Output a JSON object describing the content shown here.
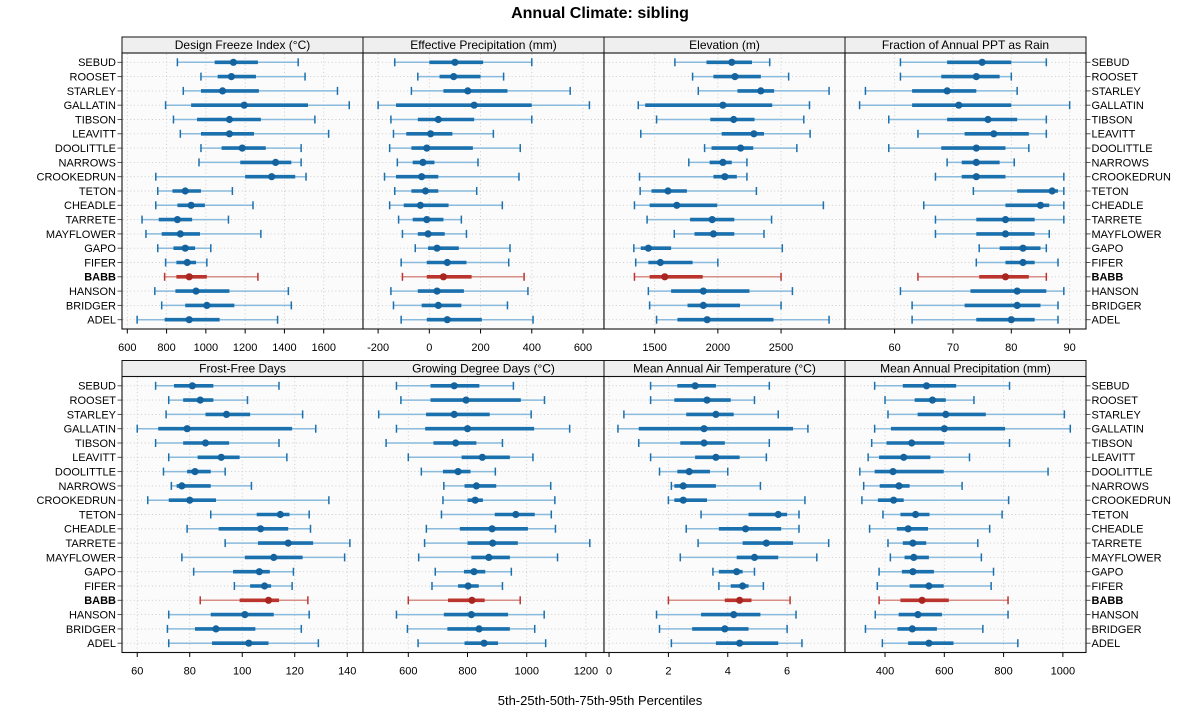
{
  "title": "Annual Climate: sibling",
  "caption": "5th-25th-50th-75th-95th Percentiles",
  "colors": {
    "blue": "#1b70ae",
    "blue_light": "#8abadc",
    "blue_dot": "#14639e",
    "red": "#bb352e",
    "red_light": "#d78e87",
    "red_dot": "#a8261f",
    "strip_bg": "#efefef",
    "panel_bg": "#fbfbfb",
    "grid": "#c9c9c9",
    "border": "#111111",
    "tick": "#000000"
  },
  "chart_data": {
    "type": "trellis-dotplot-percentiles",
    "percentiles": [
      "5th",
      "25th",
      "50th",
      "75th",
      "95th"
    ],
    "stations": [
      "SEBUD",
      "ROOSET",
      "STARLEY",
      "GALLATIN",
      "TIBSON",
      "LEAVITT",
      "DOOLITTLE",
      "NARROWS",
      "CROOKEDRUN",
      "TETON",
      "CHEADLE",
      "TARRETE",
      "MAYFLOWER",
      "GAPO",
      "FIFER",
      "BABB",
      "HANSON",
      "BRIDGER",
      "ADEL"
    ],
    "highlight_station": "BABB",
    "grid": {
      "rows": 2,
      "cols": 4
    },
    "panels": [
      {
        "title": "Design Freeze Index (°C)",
        "row": 0,
        "col": 0,
        "xlim": [
          573,
          1800
        ],
        "ticks": [
          600,
          800,
          1000,
          1200,
          1400,
          1600
        ],
        "values": [
          [
            855,
            1045,
            1140,
            1265,
            1470
          ],
          [
            975,
            1060,
            1130,
            1255,
            1505
          ],
          [
            885,
            975,
            1085,
            1270,
            1670
          ],
          [
            795,
            925,
            1195,
            1520,
            1730
          ],
          [
            835,
            955,
            1120,
            1280,
            1555
          ],
          [
            870,
            975,
            1120,
            1245,
            1625
          ],
          [
            975,
            1080,
            1185,
            1305,
            1485
          ],
          [
            965,
            1175,
            1355,
            1435,
            1485
          ],
          [
            745,
            1200,
            1335,
            1455,
            1510
          ],
          [
            755,
            830,
            895,
            975,
            1135
          ],
          [
            745,
            855,
            925,
            995,
            1240
          ],
          [
            675,
            760,
            855,
            930,
            1115
          ],
          [
            695,
            775,
            870,
            970,
            1280
          ],
          [
            755,
            835,
            895,
            945,
            1025
          ],
          [
            795,
            850,
            905,
            950,
            1005
          ],
          [
            790,
            850,
            915,
            1005,
            1265
          ],
          [
            740,
            845,
            950,
            1120,
            1420
          ],
          [
            775,
            895,
            1005,
            1145,
            1435
          ],
          [
            650,
            790,
            915,
            1070,
            1365
          ]
        ]
      },
      {
        "title": "Effective Precipitation (mm)",
        "row": 0,
        "col": 1,
        "xlim": [
          -259,
          682
        ],
        "ticks": [
          -200,
          0,
          200,
          400,
          600
        ],
        "values": [
          [
            -135,
            0,
            100,
            210,
            400
          ],
          [
            -45,
            40,
            95,
            200,
            290
          ],
          [
            -70,
            55,
            150,
            305,
            550
          ],
          [
            -200,
            -130,
            175,
            400,
            625
          ],
          [
            -150,
            -45,
            35,
            175,
            400
          ],
          [
            -140,
            -90,
            5,
            90,
            250
          ],
          [
            -155,
            -70,
            -10,
            170,
            355
          ],
          [
            -125,
            -65,
            -25,
            20,
            190
          ],
          [
            -175,
            -130,
            -30,
            35,
            350
          ],
          [
            -135,
            -70,
            -15,
            35,
            185
          ],
          [
            -155,
            -100,
            -35,
            75,
            285
          ],
          [
            -120,
            -65,
            -10,
            55,
            125
          ],
          [
            -105,
            -45,
            -5,
            60,
            145
          ],
          [
            -55,
            -5,
            30,
            115,
            315
          ],
          [
            -110,
            -10,
            70,
            145,
            310
          ],
          [
            -105,
            -10,
            55,
            165,
            370
          ],
          [
            -150,
            -45,
            30,
            135,
            385
          ],
          [
            -140,
            -30,
            35,
            125,
            305
          ],
          [
            -110,
            -10,
            70,
            205,
            405
          ]
        ]
      },
      {
        "title": "Elevation (m)",
        "row": 0,
        "col": 2,
        "xlim": [
          1099,
          3006
        ],
        "ticks": [
          1500,
          2000,
          2500
        ],
        "values": [
          [
            1660,
            1910,
            2110,
            2270,
            2410
          ],
          [
            1800,
            1965,
            2135,
            2340,
            2560
          ],
          [
            1845,
            2155,
            2340,
            2445,
            2880
          ],
          [
            1370,
            1425,
            2040,
            2430,
            2725
          ],
          [
            1515,
            1940,
            2125,
            2290,
            2680
          ],
          [
            1390,
            2030,
            2285,
            2365,
            2730
          ],
          [
            1895,
            1950,
            2180,
            2280,
            2625
          ],
          [
            1770,
            1935,
            2040,
            2110,
            2230
          ],
          [
            1380,
            1965,
            2055,
            2150,
            2230
          ],
          [
            1385,
            1475,
            1605,
            1755,
            2305
          ],
          [
            1340,
            1460,
            1675,
            1995,
            2835
          ],
          [
            1440,
            1780,
            1955,
            2130,
            2425
          ],
          [
            1655,
            1815,
            1965,
            2130,
            2365
          ],
          [
            1335,
            1390,
            1450,
            1630,
            2510
          ],
          [
            1350,
            1450,
            1545,
            1800,
            2000
          ],
          [
            1340,
            1460,
            1580,
            1880,
            2500
          ],
          [
            1450,
            1630,
            1885,
            2250,
            2590
          ],
          [
            1460,
            1760,
            1885,
            2175,
            2500
          ],
          [
            1515,
            1680,
            1915,
            2440,
            2880
          ]
        ]
      },
      {
        "title": "Fraction of Annual PPT as Rain",
        "row": 0,
        "col": 3,
        "xlim": [
          51.5,
          92.8
        ],
        "ticks": [
          60,
          70,
          80,
          90
        ],
        "values": [
          [
            61,
            69,
            75,
            80,
            86
          ],
          [
            61,
            68,
            74,
            78,
            80
          ],
          [
            55,
            63,
            69,
            74,
            81
          ],
          [
            54,
            63,
            71,
            80,
            90
          ],
          [
            59,
            69,
            76,
            81,
            86
          ],
          [
            64,
            72,
            77,
            83,
            86
          ],
          [
            59,
            68,
            74,
            79,
            83
          ],
          [
            69,
            71.5,
            74,
            78,
            80.5
          ],
          [
            67,
            71.5,
            74,
            79,
            89
          ],
          [
            73.5,
            81,
            87,
            88,
            89
          ],
          [
            65,
            79,
            85,
            86.5,
            89
          ],
          [
            67,
            74,
            79,
            84,
            89
          ],
          [
            67,
            74,
            79,
            84,
            86.5
          ],
          [
            74.5,
            78,
            82,
            85,
            86
          ],
          [
            74,
            79,
            82,
            84,
            88
          ],
          [
            64,
            74.5,
            79,
            83,
            86
          ],
          [
            61,
            73,
            81,
            86,
            89
          ],
          [
            63,
            72,
            81,
            85,
            88
          ],
          [
            63,
            74,
            80,
            84,
            88
          ]
        ]
      },
      {
        "title": "Frost-Free Days",
        "row": 1,
        "col": 0,
        "xlim": [
          54.2,
          146
        ],
        "ticks": [
          60,
          80,
          100,
          120,
          140
        ],
        "values": [
          [
            67,
            74,
            81,
            89,
            114
          ],
          [
            72,
            77.5,
            84,
            89,
            102
          ],
          [
            71,
            86,
            94,
            103,
            123
          ],
          [
            60,
            68,
            79,
            119,
            128
          ],
          [
            67,
            77.5,
            86,
            95,
            114
          ],
          [
            72,
            83,
            92,
            99,
            117
          ],
          [
            70,
            79,
            82,
            88,
            93.5
          ],
          [
            73,
            75,
            77,
            88,
            103.5
          ],
          [
            64,
            72,
            80,
            90,
            133
          ],
          [
            88,
            105.5,
            114.5,
            118,
            125.5
          ],
          [
            79,
            91,
            107,
            117.5,
            126
          ],
          [
            93.5,
            106,
            117.5,
            127,
            141
          ],
          [
            77,
            101,
            112,
            123,
            139
          ],
          [
            81.5,
            96.5,
            106.5,
            110.5,
            119.5
          ],
          [
            97,
            103,
            108.5,
            111,
            119
          ],
          [
            84,
            99,
            110,
            114,
            125
          ],
          [
            72,
            88,
            101,
            112,
            125.5
          ],
          [
            71.5,
            82,
            90,
            105,
            122.5
          ],
          [
            72,
            88.5,
            102.5,
            110,
            129
          ]
        ]
      },
      {
        "title": "Growing Degree Days (°C)",
        "row": 1,
        "col": 1,
        "xlim": [
          447,
          1261
        ],
        "ticks": [
          600,
          800,
          1000,
          1200
        ],
        "values": [
          [
            560,
            675,
            755,
            840,
            955
          ],
          [
            575,
            675,
            795,
            980,
            1060
          ],
          [
            500,
            660,
            755,
            875,
            1015
          ],
          [
            560,
            657,
            800,
            1025,
            1145
          ],
          [
            525,
            685,
            760,
            830,
            918
          ],
          [
            600,
            780,
            850,
            943,
            1021
          ],
          [
            644,
            717,
            768,
            810,
            894
          ],
          [
            720,
            790,
            830,
            897,
            1081
          ],
          [
            717,
            800,
            826,
            852,
            1095
          ],
          [
            712,
            892,
            963,
            1027,
            1083
          ],
          [
            661,
            774,
            883,
            1004,
            1097
          ],
          [
            655,
            800,
            885,
            970,
            1213
          ],
          [
            635,
            813,
            872,
            943,
            1104
          ],
          [
            691,
            788,
            822,
            860,
            948
          ],
          [
            680,
            768,
            802,
            838,
            918
          ],
          [
            600,
            734,
            815,
            858,
            978
          ],
          [
            560,
            720,
            813,
            937,
            1059
          ],
          [
            597,
            732,
            839,
            943,
            1027
          ],
          [
            633,
            790,
            856,
            903,
            1064
          ]
        ]
      },
      {
        "title": "Mean Annual Air Temperature (°C)",
        "row": 1,
        "col": 2,
        "xlim": [
          -0.17,
          7.95
        ],
        "ticks": [
          0,
          2,
          4,
          6
        ],
        "values": [
          [
            1.4,
            2.3,
            2.9,
            3.6,
            5.4
          ],
          [
            1.4,
            2.2,
            3.3,
            4.1,
            4.9
          ],
          [
            0.5,
            2.6,
            3.6,
            4.2,
            5.7
          ],
          [
            0.3,
            1.0,
            3.2,
            6.2,
            6.7
          ],
          [
            1.0,
            2.4,
            3.2,
            3.9,
            5.4
          ],
          [
            1.4,
            2.9,
            3.6,
            4.4,
            5.3
          ],
          [
            1.7,
            2.3,
            2.7,
            3.4,
            4.0
          ],
          [
            2.1,
            2.2,
            2.5,
            3.6,
            5.1
          ],
          [
            2.0,
            2.2,
            2.5,
            3.3,
            6.6
          ],
          [
            3.1,
            4.7,
            5.7,
            6.0,
            6.4
          ],
          [
            2.6,
            3.7,
            4.6,
            5.8,
            6.4
          ],
          [
            3.0,
            4.5,
            5.3,
            6.2,
            7.4
          ],
          [
            2.4,
            4.3,
            4.9,
            5.7,
            7.0
          ],
          [
            3.5,
            3.7,
            4.3,
            4.5,
            4.9
          ],
          [
            3.7,
            4.1,
            4.5,
            4.7,
            5.2
          ],
          [
            2.0,
            3.9,
            4.4,
            4.8,
            6.1
          ],
          [
            1.6,
            3.1,
            4.2,
            5.1,
            6.3
          ],
          [
            1.7,
            2.8,
            3.9,
            4.7,
            6.0
          ],
          [
            2.1,
            3.6,
            4.4,
            5.7,
            6.5
          ]
        ]
      },
      {
        "title": "Mean Annual Precipitation (mm)",
        "row": 1,
        "col": 3,
        "xlim": [
          265,
          1078
        ],
        "ticks": [
          400,
          600,
          800,
          1000
        ],
        "values": [
          [
            365,
            460,
            540,
            640,
            820
          ],
          [
            400,
            500,
            560,
            605,
            700
          ],
          [
            410,
            510,
            605,
            740,
            1005
          ],
          [
            365,
            420,
            600,
            805,
            1025
          ],
          [
            355,
            405,
            490,
            600,
            820
          ],
          [
            343,
            380,
            463,
            553,
            685
          ],
          [
            315,
            365,
            427,
            598,
            950
          ],
          [
            328,
            382,
            447,
            483,
            660
          ],
          [
            322,
            376,
            429,
            463,
            817
          ],
          [
            393,
            452,
            503,
            550,
            795
          ],
          [
            348,
            440,
            478,
            545,
            753
          ],
          [
            410,
            460,
            494,
            539,
            713
          ],
          [
            418,
            466,
            497,
            548,
            725
          ],
          [
            380,
            457,
            494,
            565,
            766
          ],
          [
            374,
            483,
            548,
            598,
            758
          ],
          [
            380,
            452,
            525,
            615,
            815
          ],
          [
            367,
            446,
            511,
            592,
            815
          ],
          [
            334,
            442,
            492,
            575,
            730
          ],
          [
            391,
            478,
            548,
            631,
            848
          ]
        ]
      }
    ]
  }
}
